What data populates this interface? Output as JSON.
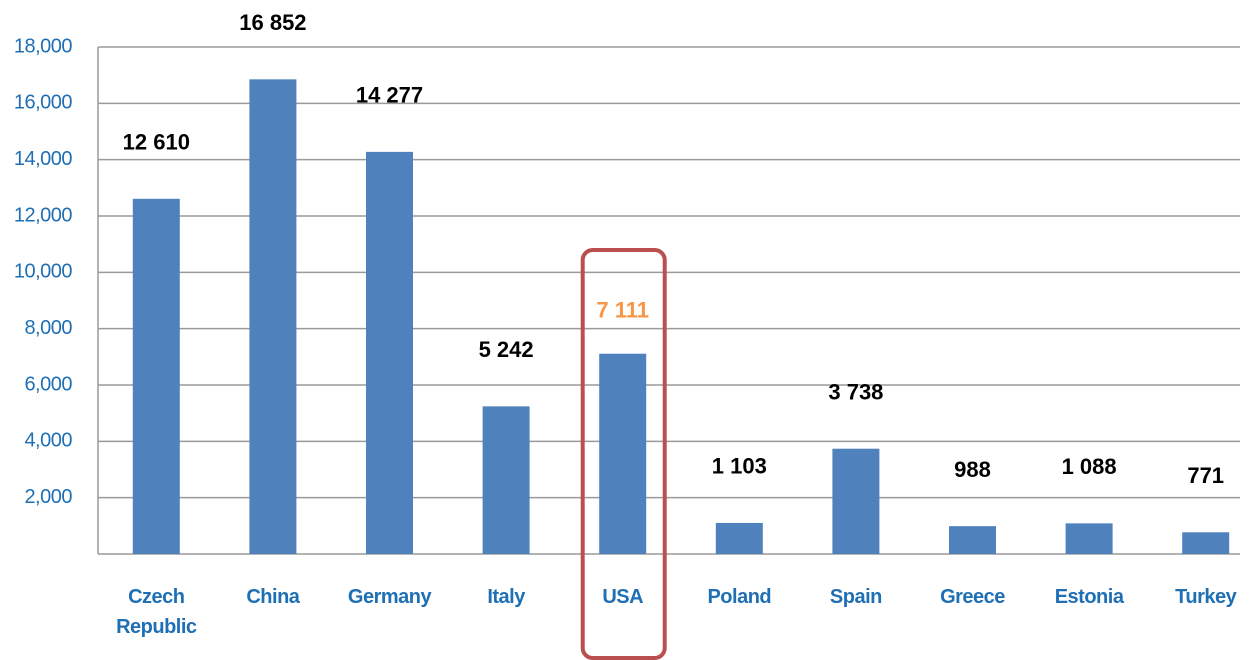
{
  "chart_data": {
    "type": "bar",
    "categories": [
      "Czech Republic",
      "China",
      "Germany",
      "Italy",
      "USA",
      "Poland",
      "Spain",
      "Greece",
      "Estonia",
      "Turkey"
    ],
    "values": [
      12610,
      16852,
      14277,
      5242,
      7111,
      1103,
      3738,
      988,
      1088,
      771
    ],
    "value_labels": [
      "12 610",
      "16 852",
      "14 277",
      "5 242",
      "7 111",
      "1 103",
      "3 738",
      "988",
      "1 088",
      "771"
    ],
    "color": "#4f81bd",
    "value_label_color": "#000000",
    "axis_label_color": "#1f6fb5",
    "highlight": "USA",
    "highlight_label_color": "#f79646",
    "highlight_box_color": "#b9504f",
    "ylim": [
      0,
      18000
    ],
    "yticks": [
      {
        "value": 2000,
        "label": "2,000"
      },
      {
        "value": 4000,
        "label": "4,000"
      },
      {
        "value": 6000,
        "label": "6,000"
      },
      {
        "value": 8000,
        "label": "8,000"
      },
      {
        "value": 10000,
        "label": "10,000"
      },
      {
        "value": 12000,
        "label": "12,000"
      },
      {
        "value": 14000,
        "label": "14,000"
      },
      {
        "value": 16000,
        "label": "16,000"
      },
      {
        "value": 18000,
        "label": "18,000"
      }
    ],
    "grid": true
  }
}
